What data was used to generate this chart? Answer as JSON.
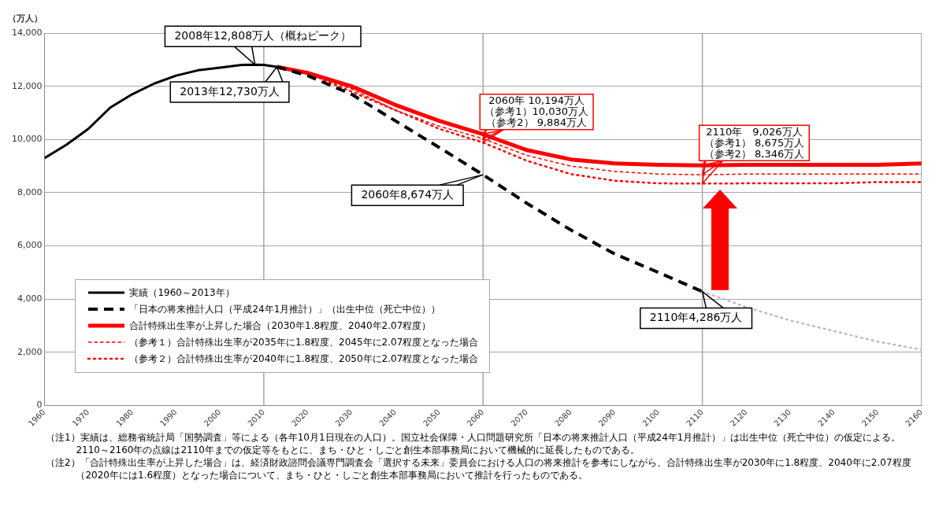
{
  "chart_data": {
    "type": "line",
    "ylabel": "（万人）",
    "xlim": [
      1960,
      2160
    ],
    "xticks": [
      1960,
      1970,
      1980,
      1990,
      2000,
      2010,
      2020,
      2030,
      2040,
      2050,
      2060,
      2070,
      2080,
      2090,
      2100,
      2110,
      2120,
      2130,
      2140,
      2150,
      2160
    ],
    "ylim": [
      0,
      14000
    ],
    "yticks": [
      0,
      {
        "value": 2000,
        "label": "2,000"
      },
      {
        "value": 4000,
        "label": "4,000"
      },
      {
        "value": 6000,
        "label": "6,000"
      },
      {
        "value": 8000,
        "label": "8,000"
      },
      {
        "value": 10000,
        "label": "10,000"
      },
      {
        "value": 12000,
        "label": "12,000"
      },
      {
        "value": 14000,
        "label": "14,000"
      }
    ],
    "grid": "y",
    "legend": "bottom left",
    "ref_lines": [
      {
        "axis": "x",
        "value": 2010,
        "color": "#a6a6a6"
      },
      {
        "axis": "x",
        "value": 2060,
        "color": "#a6a6a6"
      },
      {
        "axis": "x",
        "value": 2110,
        "color": "#a6a6a6"
      }
    ],
    "series": [
      {
        "name": "実績（1960～2013年）",
        "color": "#000000",
        "line_style": "solid",
        "x": [
          1960,
          1965,
          1970,
          1975,
          1980,
          1985,
          1990,
          1995,
          2000,
          2005,
          2008,
          2010,
          2013
        ],
        "values": [
          9300,
          9800,
          10400,
          11200,
          11700,
          12100,
          12400,
          12600,
          12700,
          12800,
          12808,
          12800,
          12730
        ]
      },
      {
        "name": "「日本の将来推計人口（平成24年1月推計）」（出生中位（死亡中位））",
        "color": "#000000",
        "line_style": "dashed",
        "x": [
          2013,
          2020,
          2030,
          2040,
          2050,
          2060,
          2070,
          2080,
          2090,
          2100,
          2110
        ],
        "values": [
          12730,
          12400,
          11700,
          10700,
          9700,
          8674,
          7600,
          6600,
          5700,
          5000,
          4286
        ]
      },
      {
        "name": "合計特殊出生率が上昇した場合（2030年1.8程度、2040年2.07程度）",
        "color": "#ff0000",
        "line_style": "solid",
        "x": [
          2013,
          2020,
          2030,
          2040,
          2050,
          2060,
          2070,
          2080,
          2090,
          2100,
          2110,
          2120,
          2130,
          2140,
          2150,
          2160
        ],
        "values": [
          12730,
          12500,
          12000,
          11300,
          10700,
          10194,
          9600,
          9250,
          9100,
          9050,
          9026,
          9050,
          9050,
          9050,
          9050,
          9100
        ]
      },
      {
        "name": "（参考１）合計特殊出生率が2035年に1.8程度、2045年に2.07程度となった場合",
        "color": "#ff0000",
        "line_style": "dashed",
        "x": [
          2013,
          2020,
          2030,
          2040,
          2050,
          2060,
          2070,
          2080,
          2090,
          2100,
          2110,
          2120,
          2130,
          2140,
          2150,
          2160
        ],
        "values": [
          12730,
          12500,
          11900,
          11100,
          10500,
          10030,
          9400,
          9000,
          8800,
          8700,
          8675,
          8700,
          8700,
          8700,
          8700,
          8700
        ]
      },
      {
        "name": "（参考２）合計特殊出生率が2040年に1.8程度、2050年に2.07程度となった場合",
        "color": "#ff0000",
        "line_style": "dotted",
        "x": [
          2013,
          2020,
          2030,
          2040,
          2050,
          2060,
          2070,
          2080,
          2090,
          2100,
          2110,
          2120,
          2130,
          2140,
          2150,
          2160
        ],
        "values": [
          12730,
          12500,
          11800,
          11100,
          10400,
          9884,
          9200,
          8700,
          8450,
          8350,
          8346,
          8350,
          8350,
          8350,
          8400,
          8400
        ]
      },
      {
        "color": "#bfbfbf",
        "line_style": "dotted",
        "x": [
          2110,
          2120,
          2130,
          2140,
          2150,
          2160
        ],
        "values": [
          4286,
          3700,
          3200,
          2800,
          2400,
          2100
        ]
      }
    ],
    "annotations": [
      {
        "text": "2008年12,808万人（概ねピーク）",
        "x": 2008,
        "y": 12808
      },
      {
        "text": "2013年12,730万人",
        "x": 2013,
        "y": 12730
      },
      {
        "text": "2060年8,674万人",
        "x": 2060,
        "y": 8674
      },
      {
        "text": "2110年4,286万人",
        "x": 2110,
        "y": 4286
      },
      {
        "text": "2060年 10,194万人",
        "x": 2060,
        "y": 10194
      },
      {
        "text": "（参考1）10,030万人",
        "x": 2060,
        "y": 10030
      },
      {
        "text": "（参考2） 9,884万人",
        "x": 2060,
        "y": 9884
      },
      {
        "text": "2110年　9,026万人",
        "x": 2110,
        "y": 9026
      },
      {
        "text": "（参考1） 8,675万人",
        "x": 2110,
        "y": 8675
      },
      {
        "text": "（参考2） 8,346万人",
        "x": 2110,
        "y": 8346
      },
      "（注1）実績は、総務省統計局「国勢調査」等による（各年10月1日現在の人口）。国立社会保障・人口問題研究所「日本の将来推計人口（平成24年1月推計）」は出生中位（死亡中位）の仮定による。2110～2160年の点線は2110年までの仮定等をもとに、まち・ひと・しごと創生本部事務局において機械的に延長したものである。",
      "（注2）「合計特殊出生率が上昇した場合」は、経済財政諮問会議専門調査会「選択する未来」委員会における人口の将来推計を参考にしながら、合計特殊出生率が2030年に1.8程度、2040年に2.07程度（2020年には1.6程度）となった場合について、まち・ひと・しごと創生本部事務局において推計を行ったものである。"
    ]
  }
}
